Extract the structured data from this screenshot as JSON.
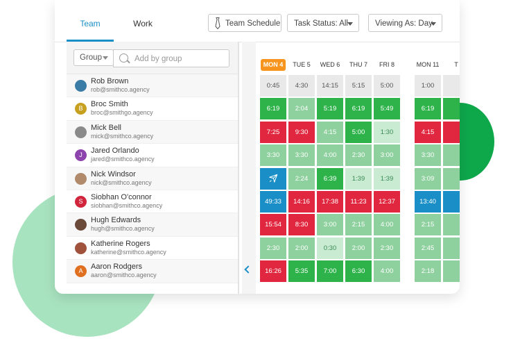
{
  "colors": {
    "accent": "#1a8fc7",
    "today": "#f7941d",
    "cell_grey": "#e9e9e9",
    "cell_red": "#e0273f",
    "cell_dark_green": "#2db34a",
    "cell_mid_green": "#8fd19e",
    "cell_light_green": "#c9ebd1",
    "cell_blue": "#1a8fc7"
  },
  "tabs": {
    "team": "Team",
    "work": "Work"
  },
  "toolbar": {
    "team_schedule": "Team Schedule",
    "team_schedule_icon": "tie-icon",
    "task_status": "Task Status: All",
    "viewing_as": "Viewing As: Day"
  },
  "filter": {
    "group_label": "Group",
    "search_placeholder": "Add by group"
  },
  "people": [
    {
      "name": "Rob Brown",
      "email": "rob@smithco.agency",
      "avatar_letter": "",
      "avatar_color": "#3a7ca5"
    },
    {
      "name": "Broc Smith",
      "email": "broc@smithgo.agency",
      "avatar_letter": "B",
      "avatar_color": "#c8a020"
    },
    {
      "name": "Mick Bell",
      "email": "mick@smithco.agency",
      "avatar_letter": "",
      "avatar_color": "#8a8a8a"
    },
    {
      "name": "Jared Orlando",
      "email": "jared@smithco.agency",
      "avatar_letter": "J",
      "avatar_color": "#8e44ad"
    },
    {
      "name": "Nick Windsor",
      "email": "nick@smithco.agency",
      "avatar_letter": "",
      "avatar_color": "#b08a6a"
    },
    {
      "name": "Siobhan O'connor",
      "email": "siobhan@smithco.agency",
      "avatar_letter": "S",
      "avatar_color": "#d0253c"
    },
    {
      "name": "Hugh Edwards",
      "email": "hugh@smithco.agency",
      "avatar_letter": "",
      "avatar_color": "#6b4a3a"
    },
    {
      "name": "Katherine Rogers",
      "email": "katherine@smithco.agency",
      "avatar_letter": "",
      "avatar_color": "#a0523d"
    },
    {
      "name": "Aaron Rodgers",
      "email": "aaron@smithco.agency",
      "avatar_letter": "A",
      "avatar_color": "#e07020"
    }
  ],
  "days": [
    {
      "label": "MON 4",
      "today": true
    },
    {
      "label": "TUE 5",
      "today": false
    },
    {
      "label": "WED 6",
      "today": false
    },
    {
      "label": "THU 7",
      "today": false
    },
    {
      "label": "FRI 8",
      "today": false
    },
    {
      "label": "MON 11",
      "today": false
    },
    {
      "label": "T",
      "today": false
    }
  ],
  "schedule": [
    [
      {
        "v": "0:45",
        "c": "grey"
      },
      {
        "v": "4:30",
        "c": "grey"
      },
      {
        "v": "14:15",
        "c": "grey"
      },
      {
        "v": "5:15",
        "c": "grey"
      },
      {
        "v": "5:00",
        "c": "grey"
      },
      {
        "v": "1:00",
        "c": "grey"
      },
      {
        "v": "",
        "c": "grey"
      }
    ],
    [
      {
        "v": "6:19",
        "c": "dark_green"
      },
      {
        "v": "2:04",
        "c": "mid_green"
      },
      {
        "v": "5:19",
        "c": "dark_green"
      },
      {
        "v": "6:19",
        "c": "dark_green"
      },
      {
        "v": "5:49",
        "c": "dark_green"
      },
      {
        "v": "6:19",
        "c": "dark_green"
      },
      {
        "v": "",
        "c": "dark_green"
      }
    ],
    [
      {
        "v": "7:25",
        "c": "red"
      },
      {
        "v": "9:30",
        "c": "red"
      },
      {
        "v": "4:15",
        "c": "mid_green"
      },
      {
        "v": "5:00",
        "c": "dark_green"
      },
      {
        "v": "1:30",
        "c": "light_green"
      },
      {
        "v": "4:15",
        "c": "red"
      },
      {
        "v": "",
        "c": "red"
      }
    ],
    [
      {
        "v": "3:30",
        "c": "mid_green"
      },
      {
        "v": "3:30",
        "c": "mid_green"
      },
      {
        "v": "4:00",
        "c": "mid_green"
      },
      {
        "v": "2:30",
        "c": "mid_green"
      },
      {
        "v": "3:00",
        "c": "mid_green"
      },
      {
        "v": "3:30",
        "c": "mid_green"
      },
      {
        "v": "",
        "c": "mid_green"
      }
    ],
    [
      {
        "v": "",
        "c": "blue",
        "icon": "airplane-icon"
      },
      {
        "v": "2:24",
        "c": "mid_green"
      },
      {
        "v": "6:39",
        "c": "dark_green"
      },
      {
        "v": "1:39",
        "c": "light_green"
      },
      {
        "v": "1:39",
        "c": "light_green"
      },
      {
        "v": "3:09",
        "c": "mid_green"
      },
      {
        "v": "",
        "c": "mid_green"
      }
    ],
    [
      {
        "v": "49:33",
        "c": "blue"
      },
      {
        "v": "14:16",
        "c": "red"
      },
      {
        "v": "17:38",
        "c": "red"
      },
      {
        "v": "11:23",
        "c": "red"
      },
      {
        "v": "12:37",
        "c": "red"
      },
      {
        "v": "13:40",
        "c": "blue"
      },
      {
        "v": "",
        "c": "blue"
      }
    ],
    [
      {
        "v": "15:54",
        "c": "red"
      },
      {
        "v": "8:30",
        "c": "red"
      },
      {
        "v": "3:00",
        "c": "mid_green"
      },
      {
        "v": "2:15",
        "c": "mid_green"
      },
      {
        "v": "4:00",
        "c": "mid_green"
      },
      {
        "v": "2:15",
        "c": "mid_green"
      },
      {
        "v": "",
        "c": "mid_green"
      }
    ],
    [
      {
        "v": "2:30",
        "c": "mid_green"
      },
      {
        "v": "2:00",
        "c": "mid_green"
      },
      {
        "v": "0:30",
        "c": "light_green"
      },
      {
        "v": "2:00",
        "c": "mid_green"
      },
      {
        "v": "2:30",
        "c": "mid_green"
      },
      {
        "v": "2:45",
        "c": "mid_green"
      },
      {
        "v": "",
        "c": "mid_green"
      }
    ],
    [
      {
        "v": "16:26",
        "c": "red"
      },
      {
        "v": "5:35",
        "c": "dark_green"
      },
      {
        "v": "7:00",
        "c": "dark_green"
      },
      {
        "v": "6:30",
        "c": "dark_green"
      },
      {
        "v": "4:00",
        "c": "mid_green"
      },
      {
        "v": "2:18",
        "c": "mid_green"
      },
      {
        "v": "",
        "c": "mid_green"
      }
    ]
  ]
}
